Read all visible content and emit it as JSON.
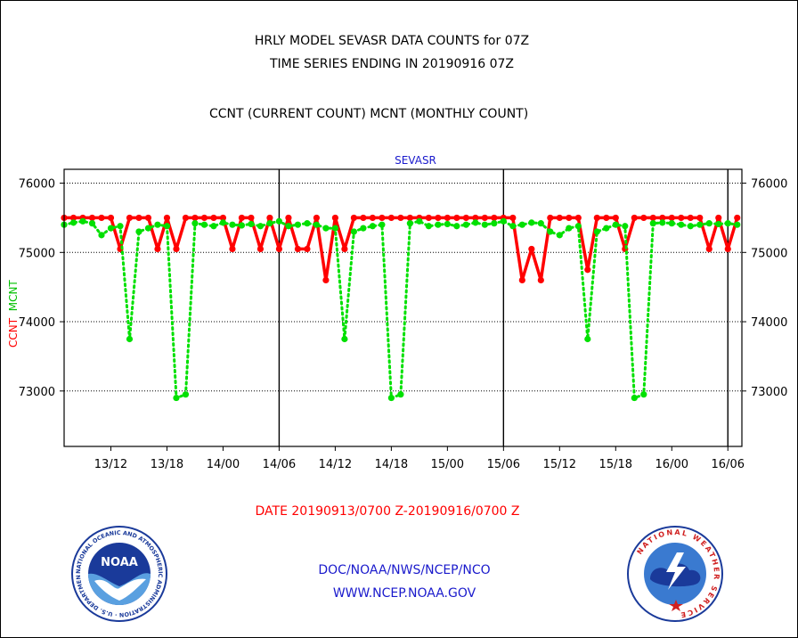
{
  "header": {
    "title_line1": "HRLY MODEL SEVASR DATA COUNTS for 07Z",
    "title_line2": "TIME SERIES ENDING IN 20190916 07Z",
    "subtitle": "CCNT (CURRENT COUNT) MCNT (MONTHLY COUNT)"
  },
  "footer": {
    "date_range": "DATE 20190913/0700 Z-20190916/0700 Z",
    "org_line": "DOC/NOAA/NWS/NCEP/NCO",
    "url_line": "WWW.NCEP.NOAA.GOV"
  },
  "logos": {
    "noaa": {
      "center_text": "NOAA",
      "ring_text": "NATIONAL OCEANIC AND ATMOSPHERIC ADMINISTRATION · U.S. DEPARTMENT OF COMMERCE ·"
    },
    "nws": {
      "ring_text": "NATIONAL WEATHER SERVICE"
    }
  },
  "colors": {
    "ccnt": "#ff0000",
    "mcnt": "#00e000",
    "plot_label": "#1a1acc",
    "grid": "#000000"
  },
  "chart_data": {
    "type": "line",
    "plot_label": "SEVASR",
    "ylabel_parts": [
      "CCNT",
      "MCNT"
    ],
    "ylim": [
      72200,
      76200
    ],
    "yticks": [
      73000,
      74000,
      75000,
      76000
    ],
    "ytick_labels": [
      "73000",
      "74000",
      "75000",
      "76000"
    ],
    "x_unit": "hours after 20190913/0700 Z",
    "xlim": [
      0,
      72.5
    ],
    "xtick_hours": [
      5,
      11,
      17,
      23,
      29,
      35,
      41,
      47,
      53,
      59,
      65,
      71
    ],
    "xtick_labels": [
      "13/12",
      "13/18",
      "14/00",
      "14/06",
      "14/12",
      "14/18",
      "15/00",
      "15/06",
      "15/12",
      "15/18",
      "16/00",
      "16/06"
    ],
    "day_boundary_hours": [
      23,
      47,
      71
    ],
    "grid": "horizontal dotted",
    "series": [
      {
        "name": "CCNT",
        "color": "#ff0000",
        "x": [
          0,
          1,
          2,
          3,
          4,
          5,
          6,
          7,
          8,
          9,
          10,
          11,
          12,
          13,
          14,
          15,
          16,
          17,
          18,
          19,
          20,
          21,
          22,
          23,
          24,
          25,
          26,
          27,
          28,
          29,
          30,
          31,
          32,
          33,
          34,
          35,
          36,
          37,
          38,
          39,
          40,
          41,
          42,
          43,
          44,
          45,
          46,
          47,
          48,
          49,
          50,
          51,
          52,
          53,
          54,
          55,
          56,
          57,
          58,
          59,
          60,
          61,
          62,
          63,
          64,
          65,
          66,
          67,
          68,
          69,
          70,
          71,
          72
        ],
        "values": [
          75500,
          75500,
          75500,
          75500,
          75500,
          75500,
          75050,
          75500,
          75500,
          75500,
          75050,
          75500,
          75050,
          75500,
          75500,
          75500,
          75500,
          75500,
          75050,
          75500,
          75500,
          75050,
          75500,
          75050,
          75500,
          75050,
          75050,
          75500,
          74600,
          75500,
          75050,
          75500,
          75500,
          75500,
          75500,
          75500,
          75500,
          75500,
          75500,
          75500,
          75500,
          75500,
          75500,
          75500,
          75500,
          75500,
          75500,
          75500,
          75500,
          74600,
          75050,
          74600,
          75500,
          75500,
          75500,
          75500,
          74750,
          75500,
          75500,
          75500,
          75050,
          75500,
          75500,
          75500,
          75500,
          75500,
          75500,
          75500,
          75500,
          75050,
          75500,
          75050,
          75500
        ]
      },
      {
        "name": "MCNT",
        "color": "#00e000",
        "x": [
          0,
          1,
          2,
          3,
          4,
          5,
          6,
          7,
          8,
          9,
          10,
          11,
          12,
          13,
          14,
          15,
          16,
          17,
          18,
          19,
          20,
          21,
          22,
          23,
          24,
          25,
          26,
          27,
          28,
          29,
          30,
          31,
          32,
          33,
          34,
          35,
          36,
          37,
          38,
          39,
          40,
          41,
          42,
          43,
          44,
          45,
          46,
          47,
          48,
          49,
          50,
          51,
          52,
          53,
          54,
          55,
          56,
          57,
          58,
          59,
          60,
          61,
          62,
          63,
          64,
          65,
          66,
          67,
          68,
          69,
          70,
          71,
          72
        ],
        "values": [
          75400,
          75430,
          75450,
          75420,
          75250,
          75350,
          75380,
          73750,
          75300,
          75350,
          75400,
          75380,
          72900,
          72950,
          75420,
          75400,
          75380,
          75430,
          75400,
          75390,
          75410,
          75380,
          75420,
          75450,
          75380,
          75400,
          75420,
          75400,
          75350,
          75350,
          73750,
          75300,
          75350,
          75380,
          75400,
          72900,
          72950,
          75420,
          75450,
          75380,
          75400,
          75410,
          75380,
          75400,
          75430,
          75400,
          75420,
          75450,
          75380,
          75400,
          75430,
          75420,
          75300,
          75250,
          75350,
          75380,
          73750,
          75300,
          75350,
          75400,
          75380,
          72900,
          72950,
          75420,
          75430,
          75420,
          75400,
          75380,
          75400,
          75420,
          75410,
          75420,
          75400
        ]
      }
    ]
  }
}
